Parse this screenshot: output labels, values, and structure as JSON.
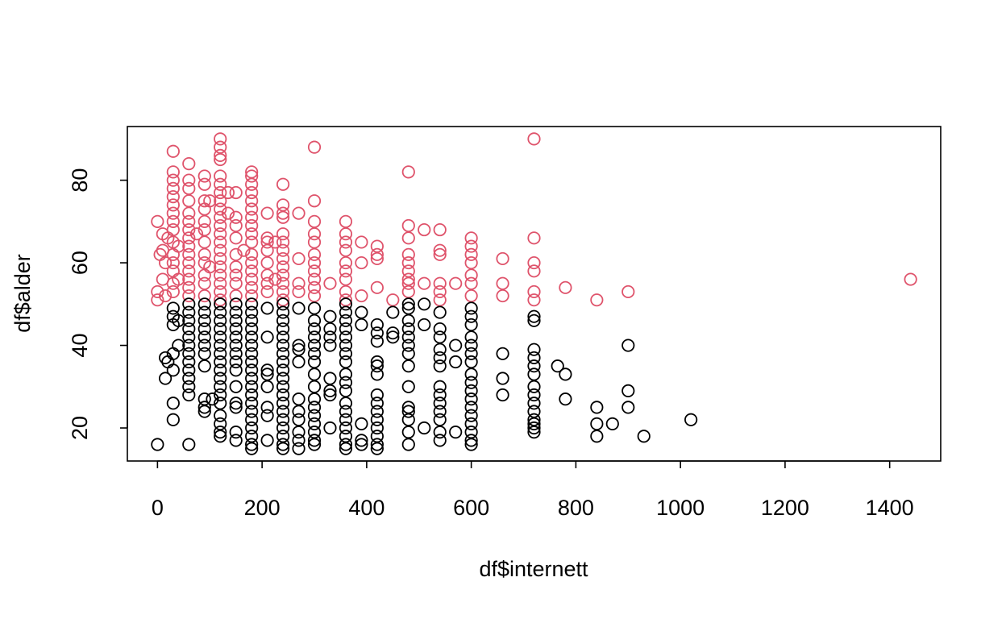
{
  "chart_data": {
    "type": "scatter",
    "x_label": "df$internett",
    "y_label": "df$alder",
    "xlim": [
      -57.6,
      1497.6
    ],
    "ylim": [
      12,
      93
    ],
    "xticks": [
      0,
      200,
      400,
      600,
      800,
      1000,
      1200,
      1400
    ],
    "yticks": [
      20,
      40,
      60,
      80
    ],
    "series": [
      {
        "color": "#DF536B",
        "x": [
          0,
          0,
          0,
          5,
          10,
          10,
          10,
          15,
          15,
          20,
          30,
          30,
          30,
          30,
          30,
          30,
          30,
          30,
          30,
          30,
          30,
          30,
          30,
          30,
          30,
          40,
          40,
          60,
          60,
          60,
          60,
          60,
          60,
          60,
          60,
          60,
          60,
          60,
          60,
          60,
          60,
          60,
          75,
          90,
          90,
          90,
          90,
          90,
          90,
          90,
          90,
          90,
          90,
          90,
          90,
          100,
          100,
          120,
          120,
          120,
          120,
          120,
          120,
          120,
          120,
          120,
          120,
          120,
          120,
          120,
          120,
          120,
          120,
          120,
          120,
          120,
          120,
          135,
          135,
          150,
          150,
          150,
          150,
          150,
          150,
          150,
          150,
          150,
          165,
          180,
          180,
          180,
          180,
          180,
          180,
          180,
          180,
          180,
          180,
          180,
          180,
          180,
          180,
          180,
          180,
          210,
          210,
          210,
          210,
          210,
          210,
          210,
          210,
          225,
          225,
          240,
          240,
          240,
          240,
          240,
          240,
          240,
          240,
          240,
          240,
          240,
          240,
          240,
          270,
          270,
          270,
          270,
          300,
          300,
          300,
          300,
          300,
          300,
          300,
          300,
          300,
          300,
          300,
          330,
          360,
          360,
          360,
          360,
          360,
          360,
          360,
          360,
          360,
          390,
          390,
          390,
          420,
          420,
          420,
          420,
          450,
          480,
          480,
          480,
          480,
          480,
          480,
          480,
          480,
          480,
          510,
          510,
          540,
          540,
          540,
          540,
          540,
          540,
          570,
          600,
          600,
          600,
          600,
          600,
          600,
          600,
          660,
          660,
          660,
          720,
          720,
          720,
          720,
          720,
          720,
          780,
          840,
          900,
          1440
        ],
        "values": [
          70,
          53,
          51,
          62,
          63,
          67,
          56,
          60,
          52,
          66,
          87,
          82,
          80,
          78,
          76,
          74,
          72,
          70,
          68,
          65,
          62,
          60,
          58,
          55,
          53,
          64,
          56,
          84,
          80,
          78,
          75,
          72,
          70,
          68,
          66,
          64,
          62,
          60,
          58,
          56,
          54,
          52,
          67,
          81,
          79,
          75,
          73,
          70,
          68,
          65,
          62,
          60,
          57,
          55,
          52,
          75,
          59,
          90,
          88,
          86,
          85,
          81,
          79,
          77,
          75,
          73,
          71,
          69,
          67,
          65,
          63,
          61,
          59,
          57,
          55,
          53,
          51,
          77,
          72,
          77,
          71,
          69,
          66,
          62,
          59,
          57,
          55,
          52,
          63,
          82,
          81,
          79,
          77,
          75,
          73,
          71,
          69,
          67,
          65,
          62,
          60,
          58,
          56,
          54,
          52,
          72,
          66,
          65,
          63,
          60,
          57,
          55,
          53,
          65,
          56,
          79,
          74,
          72,
          71,
          67,
          65,
          63,
          61,
          59,
          57,
          55,
          53,
          51,
          72,
          61,
          55,
          53,
          88,
          75,
          70,
          67,
          65,
          62,
          60,
          58,
          56,
          54,
          52,
          55,
          70,
          67,
          65,
          63,
          60,
          58,
          56,
          53,
          51,
          65,
          60,
          52,
          64,
          62,
          61,
          54,
          51,
          82,
          69,
          66,
          62,
          60,
          58,
          56,
          55,
          53,
          68,
          55,
          68,
          63,
          62,
          55,
          53,
          51,
          55,
          66,
          64,
          62,
          60,
          57,
          55,
          52,
          61,
          55,
          52,
          90,
          66,
          60,
          58,
          53,
          51,
          54,
          51,
          53,
          56
        ]
      },
      {
        "color": "#000000",
        "x": [
          0,
          15,
          15,
          20,
          30,
          30,
          30,
          30,
          30,
          30,
          30,
          40,
          40,
          60,
          60,
          60,
          60,
          60,
          60,
          60,
          60,
          60,
          60,
          60,
          60,
          60,
          90,
          90,
          90,
          90,
          90,
          90,
          90,
          90,
          90,
          90,
          90,
          105,
          120,
          120,
          120,
          120,
          120,
          120,
          120,
          120,
          120,
          120,
          120,
          120,
          120,
          120,
          120,
          120,
          120,
          150,
          150,
          150,
          150,
          150,
          150,
          150,
          150,
          150,
          150,
          150,
          150,
          150,
          150,
          180,
          180,
          180,
          180,
          180,
          180,
          180,
          180,
          180,
          180,
          180,
          180,
          180,
          180,
          180,
          180,
          180,
          180,
          180,
          210,
          210,
          210,
          210,
          210,
          210,
          210,
          210,
          240,
          240,
          240,
          240,
          240,
          240,
          240,
          240,
          240,
          240,
          240,
          240,
          240,
          240,
          240,
          240,
          240,
          240,
          240,
          270,
          270,
          270,
          270,
          270,
          270,
          270,
          270,
          270,
          270,
          300,
          300,
          300,
          300,
          300,
          300,
          300,
          300,
          300,
          300,
          300,
          300,
          300,
          300,
          300,
          300,
          330,
          330,
          330,
          330,
          330,
          330,
          330,
          330,
          360,
          360,
          360,
          360,
          360,
          360,
          360,
          360,
          360,
          360,
          360,
          360,
          360,
          360,
          360,
          360,
          360,
          360,
          390,
          390,
          390,
          390,
          390,
          420,
          420,
          420,
          420,
          420,
          420,
          420,
          420,
          420,
          420,
          420,
          420,
          420,
          420,
          450,
          450,
          450,
          480,
          480,
          480,
          480,
          480,
          480,
          480,
          480,
          480,
          480,
          480,
          480,
          480,
          480,
          510,
          510,
          510,
          540,
          540,
          540,
          540,
          540,
          540,
          540,
          540,
          540,
          540,
          540,
          540,
          540,
          570,
          570,
          570,
          600,
          600,
          600,
          600,
          600,
          600,
          600,
          600,
          600,
          600,
          600,
          600,
          600,
          600,
          600,
          600,
          600,
          660,
          660,
          660,
          720,
          720,
          720,
          720,
          720,
          720,
          720,
          720,
          720,
          720,
          720,
          720,
          720,
          720,
          765,
          780,
          780,
          840,
          840,
          840,
          870,
          900,
          900,
          900,
          930,
          1020
        ],
        "values": [
          16,
          37,
          32,
          36,
          49,
          47,
          45,
          38,
          34,
          26,
          22,
          46,
          40,
          50,
          48,
          46,
          44,
          42,
          40,
          38,
          36,
          34,
          32,
          30,
          28,
          16,
          50,
          48,
          46,
          44,
          42,
          40,
          38,
          35,
          27,
          25,
          24,
          27,
          50,
          48,
          46,
          44,
          42,
          40,
          38,
          36,
          34,
          32,
          30,
          28,
          26,
          23,
          21,
          19,
          18,
          50,
          48,
          46,
          44,
          42,
          40,
          38,
          36,
          34,
          30,
          26,
          25,
          19,
          17,
          50,
          48,
          46,
          44,
          42,
          40,
          38,
          36,
          34,
          32,
          30,
          28,
          26,
          24,
          22,
          20,
          18,
          16,
          15,
          49,
          42,
          34,
          33,
          30,
          25,
          23,
          17,
          50,
          48,
          46,
          44,
          42,
          40,
          38,
          36,
          34,
          32,
          30,
          28,
          26,
          24,
          22,
          20,
          18,
          16,
          15,
          49,
          40,
          39,
          36,
          27,
          24,
          22,
          19,
          17,
          15,
          49,
          46,
          44,
          42,
          40,
          38,
          36,
          33,
          30,
          27,
          25,
          23,
          21,
          19,
          17,
          16,
          47,
          44,
          42,
          40,
          32,
          29,
          28,
          20,
          50,
          48,
          46,
          44,
          42,
          40,
          38,
          36,
          33,
          31,
          29,
          26,
          24,
          22,
          20,
          18,
          16,
          15,
          48,
          45,
          21,
          17,
          16,
          45,
          43,
          41,
          36,
          35,
          33,
          28,
          26,
          24,
          22,
          20,
          18,
          16,
          15,
          48,
          43,
          42,
          50,
          49,
          46,
          44,
          42,
          40,
          38,
          35,
          30,
          25,
          24,
          22,
          19,
          16,
          50,
          45,
          20,
          48,
          44,
          42,
          39,
          37,
          35,
          30,
          28,
          26,
          24,
          22,
          19,
          17,
          40,
          36,
          19,
          49,
          47,
          45,
          42,
          40,
          38,
          36,
          33,
          31,
          29,
          27,
          25,
          23,
          21,
          19,
          17,
          16,
          38,
          32,
          28,
          47,
          46,
          39,
          37,
          35,
          33,
          30,
          28,
          26,
          24,
          22,
          21,
          20,
          19,
          35,
          33,
          27,
          25,
          21,
          18,
          21,
          40,
          29,
          25,
          18,
          22
        ]
      }
    ]
  }
}
